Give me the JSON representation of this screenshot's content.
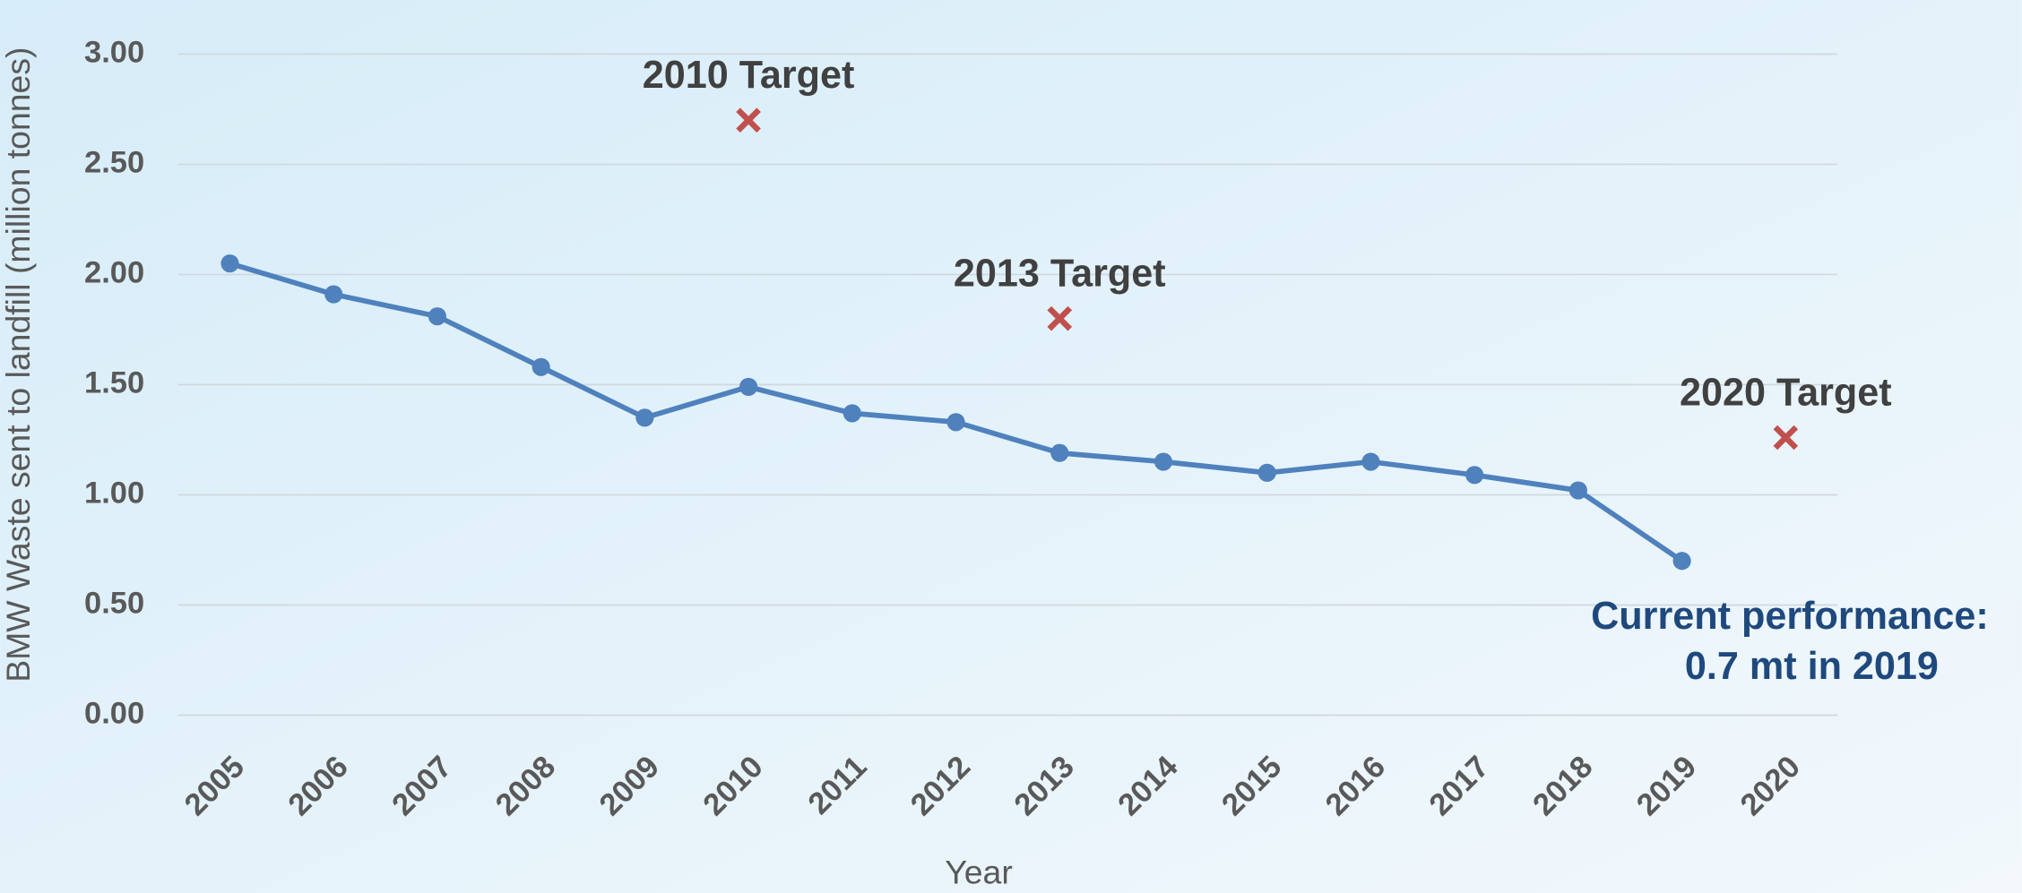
{
  "chart_data": {
    "type": "line",
    "xlabel": "Year",
    "ylabel": "BMW Waste sent to landfill  (million tonnes)",
    "categories": [
      "2005",
      "2006",
      "2007",
      "2008",
      "2009",
      "2010",
      "2011",
      "2012",
      "2013",
      "2014",
      "2015",
      "2016",
      "2017",
      "2018",
      "2019",
      "2020"
    ],
    "series": [
      {
        "color": "#4f81bd",
        "marker": "circle",
        "values": [
          2.05,
          1.91,
          1.81,
          1.58,
          1.35,
          1.49,
          1.37,
          1.33,
          1.19,
          1.15,
          1.1,
          1.15,
          1.09,
          1.02,
          0.7,
          null
        ]
      },
      {
        "color": "#c0504d",
        "marker": "x",
        "line": false,
        "values": [
          null,
          null,
          null,
          null,
          null,
          2.7,
          null,
          null,
          1.8,
          null,
          null,
          null,
          null,
          null,
          null,
          1.26
        ]
      }
    ],
    "annotations": [
      "2010 Target",
      "2013 Target",
      "2020 Target"
    ],
    "note": [
      "Current performance:",
      "0.7 mt in 2019"
    ],
    "ylim": [
      0,
      3
    ],
    "yticks": [
      {
        "value": 0,
        "label": "0.00"
      },
      {
        "value": 0.5,
        "label": "0.50"
      },
      {
        "value": 1,
        "label": "1.00"
      },
      {
        "value": 1.5,
        "label": "1.50"
      },
      {
        "value": 2,
        "label": "2.00"
      },
      {
        "value": 2.5,
        "label": "2.50"
      },
      {
        "value": 3,
        "label": "3.00"
      }
    ],
    "grid": true
  }
}
